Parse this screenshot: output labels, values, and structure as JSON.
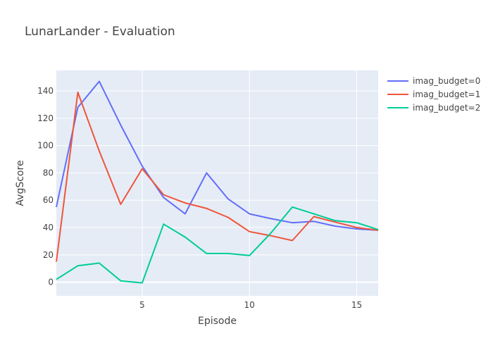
{
  "chart_data": {
    "type": "line",
    "title": "LunarLander - Evaluation",
    "xlabel": "Episode",
    "ylabel": "AvgScore",
    "xlim": [
      1,
      16
    ],
    "ylim": [
      -10,
      155
    ],
    "xticks": [
      5,
      10,
      15
    ],
    "yticks": [
      0,
      20,
      40,
      60,
      80,
      100,
      120,
      140
    ],
    "grid": true,
    "legend_position": "right",
    "colors": {
      "plot_bg": "#e5ecf6",
      "grid": "#ffffff",
      "text": "#444444",
      "title": "#444444"
    },
    "x": [
      1,
      2,
      3,
      4,
      5,
      6,
      7,
      8,
      9,
      10,
      11,
      12,
      13,
      14,
      15,
      16
    ],
    "series": [
      {
        "name": "imag_budget=0",
        "color": "#636efa",
        "values": [
          55,
          128,
          147,
          115,
          85,
          62,
          50,
          80,
          61,
          50,
          46.5,
          43.5,
          44.5,
          41,
          39,
          38
        ]
      },
      {
        "name": "imag_budget=1",
        "color": "#EF553B",
        "values": [
          15,
          139,
          96,
          57,
          83,
          64,
          58,
          54,
          47.5,
          37,
          34,
          30.5,
          48,
          44,
          40,
          38
        ]
      },
      {
        "name": "imag_budget=2",
        "color": "#00cc96",
        "values": [
          2,
          12,
          14,
          1,
          -0.5,
          42.5,
          33,
          21,
          21,
          19.5,
          36,
          55,
          50,
          45,
          43.5,
          38.5
        ]
      }
    ]
  }
}
